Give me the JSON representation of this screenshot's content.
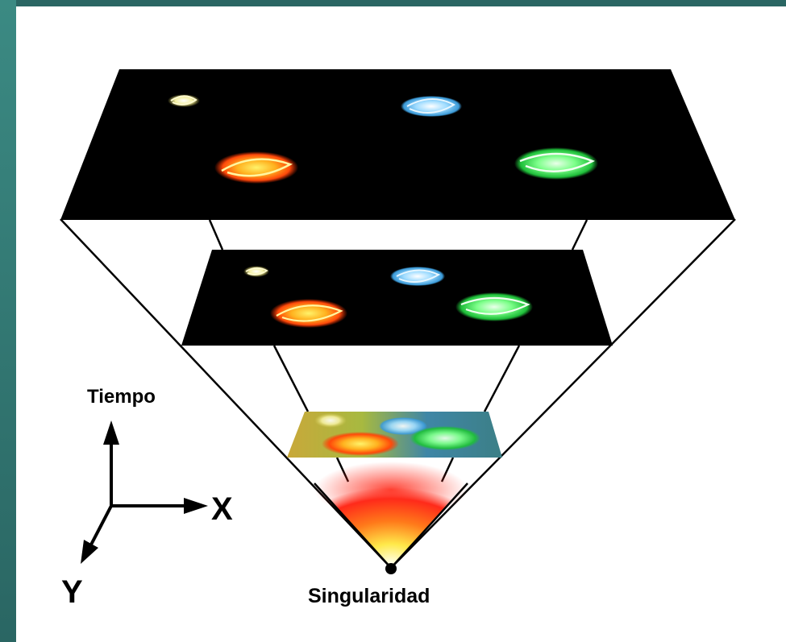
{
  "labels": {
    "time_axis": "Tiempo",
    "x_axis": "X",
    "y_axis": "Y",
    "singularity": "Singularidad"
  },
  "colors": {
    "galaxy_yellow": "#f4f0a0",
    "galaxy_blue": "#9fdcff",
    "galaxy_orange": "#ff9a1a",
    "galaxy_green": "#8dff9a"
  }
}
